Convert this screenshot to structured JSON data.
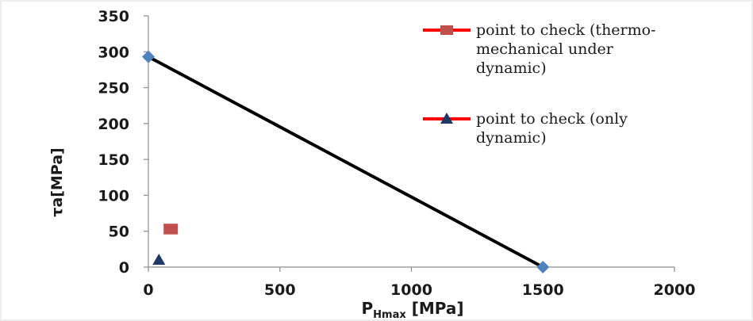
{
  "chart_data": {
    "type": "scatter",
    "title": "",
    "xlabel": "P",
    "xlabel_sub": "Hmax",
    "xlabel_unit": " [MPa]",
    "ylabel": "τa[MPa]",
    "xlim": [
      0,
      2000
    ],
    "ylim": [
      0,
      350
    ],
    "x_ticks": [
      "0",
      "500",
      "1000",
      "1500",
      "2000"
    ],
    "y_ticks": [
      "0",
      "50",
      "100",
      "150",
      "200",
      "250",
      "300",
      "350"
    ],
    "grid": false,
    "legend_placement": "top-right",
    "series": [
      {
        "kind": "limit-line",
        "color": "#000000",
        "marker_color": "#4f81bd",
        "marker": "diamond",
        "points": [
          {
            "x": 0,
            "y": 293
          },
          {
            "x": 1500,
            "y": 0
          }
        ]
      },
      {
        "name": "point to check (thermo-mechanical under dynamic)",
        "legend_lines": [
          "point to check (thermo-",
          "mechanical under",
          "dynamic)"
        ],
        "marker": "square",
        "color": "#c0504d",
        "legend_line_color": "#ff0000",
        "points": [
          {
            "x": 85,
            "y": 53
          }
        ]
      },
      {
        "name": "point to check (only dynamic)",
        "legend_lines": [
          "point to check (only",
          "dynamic)"
        ],
        "marker": "triangle",
        "color": "#1f3864",
        "legend_line_color": "#ff0000",
        "points": [
          {
            "x": 40,
            "y": 10
          }
        ]
      }
    ]
  }
}
